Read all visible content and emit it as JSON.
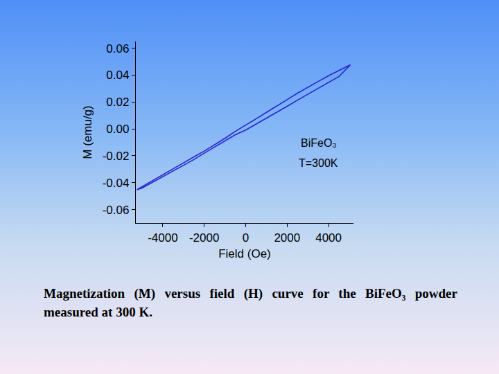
{
  "chart_data": {
    "type": "line",
    "xlabel": "Field (Oe)",
    "ylabel": "M (emu/g)",
    "x": [
      5050,
      4500,
      4000,
      3500,
      3000,
      2500,
      2000,
      1500,
      1000,
      500,
      0,
      -500,
      -1000,
      -1500,
      -2000,
      -2500,
      -3000,
      -3500,
      -4000,
      -4500,
      -5000,
      -5250,
      -5000,
      -4500,
      -4000,
      -3500,
      -3000,
      -2500,
      -2000,
      -1500,
      -1000,
      -500,
      0,
      500,
      1000,
      1500,
      2000,
      2500,
      3000,
      3500,
      4000,
      4500,
      5050
    ],
    "series": [
      {
        "color": "#2424d6",
        "values": [
          0.0477,
          0.0436,
          0.0396,
          0.0353,
          0.031,
          0.0266,
          0.0218,
          0.0172,
          0.0123,
          0.0075,
          0.003,
          -0.0018,
          -0.007,
          -0.0118,
          -0.0165,
          -0.0208,
          -0.0252,
          -0.0296,
          -0.034,
          -0.0385,
          -0.0428,
          -0.0452,
          -0.044,
          -0.0398,
          -0.0358,
          -0.0316,
          -0.0273,
          -0.0228,
          -0.018,
          -0.0134,
          -0.0088,
          -0.0043,
          -0.0008,
          0.0035,
          0.008,
          0.0125,
          0.0168,
          0.0214,
          0.0258,
          0.0302,
          0.0346,
          0.039,
          0.0477
        ]
      }
    ],
    "xlim": [
      -5300,
      5200
    ],
    "ylim": [
      -0.07,
      0.065
    ],
    "xticks": [
      -4000,
      -2000,
      0,
      2000,
      4000
    ],
    "yticks": [
      -0.06,
      -0.04,
      -0.02,
      {
        "value": 0,
        "label": "0.00"
      },
      0.02,
      0.04,
      0.06
    ],
    "grid": false,
    "annotations": [
      "BiFeO₃",
      "T=300K"
    ],
    "caption": "Magnetization (M) versus field (H) curve for the BiFeO₃ powder measured at 300 K."
  }
}
